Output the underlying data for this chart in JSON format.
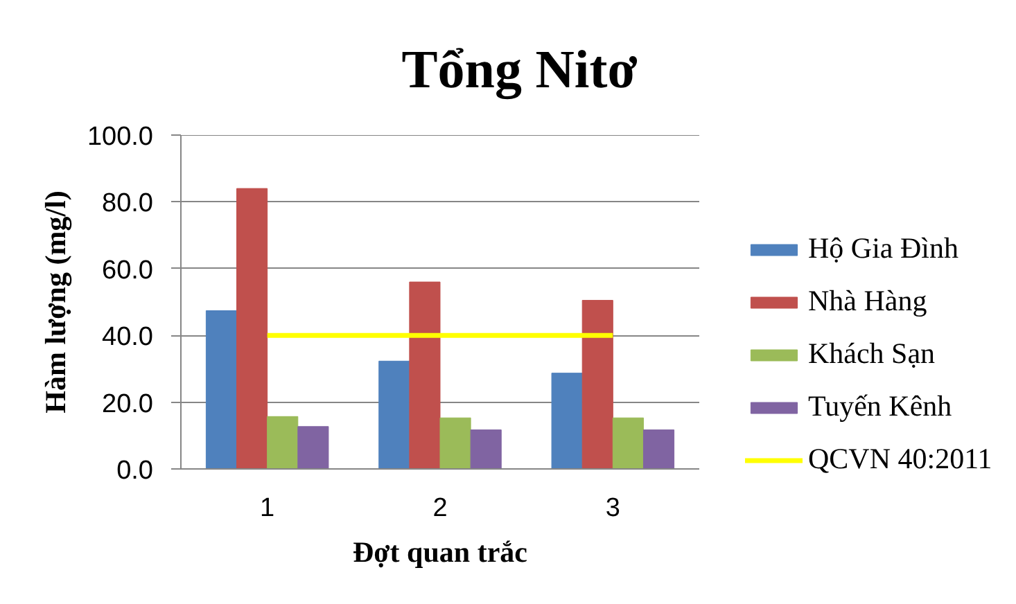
{
  "chart_data": {
    "type": "bar",
    "title": "Tổng Nitơ",
    "xlabel": "Đợt quan trắc",
    "ylabel": "Hàm lượng (mg/l)",
    "categories": [
      "1",
      "2",
      "3"
    ],
    "series": [
      {
        "name": "Hộ Gia Đình",
        "color": "#4f81bd",
        "values": [
          47.4,
          32.3,
          28.7
        ]
      },
      {
        "name": "Nhà Hàng",
        "color": "#c0504d",
        "values": [
          84.0,
          56.0,
          50.5
        ]
      },
      {
        "name": "Khách Sạn",
        "color": "#9bbb59",
        "values": [
          15.7,
          15.3,
          15.3
        ]
      },
      {
        "name": "Tuyến Kênh",
        "color": "#8064a2",
        "values": [
          12.7,
          11.7,
          11.7
        ]
      },
      {
        "name": "QCVN 40:2011",
        "type": "line",
        "color": "#ffff00",
        "values": [
          40,
          40,
          40
        ]
      }
    ],
    "ylim": [
      0,
      100
    ],
    "yticks": [
      {
        "value": 0,
        "label": "0.0"
      },
      {
        "value": 20,
        "label": "20.0"
      },
      {
        "value": 40,
        "label": "40.0"
      },
      {
        "value": 60,
        "label": "60.0"
      },
      {
        "value": 80,
        "label": "80.0"
      },
      {
        "value": 100,
        "label": "100.0"
      }
    ],
    "grid": "y",
    "legend": "right"
  }
}
